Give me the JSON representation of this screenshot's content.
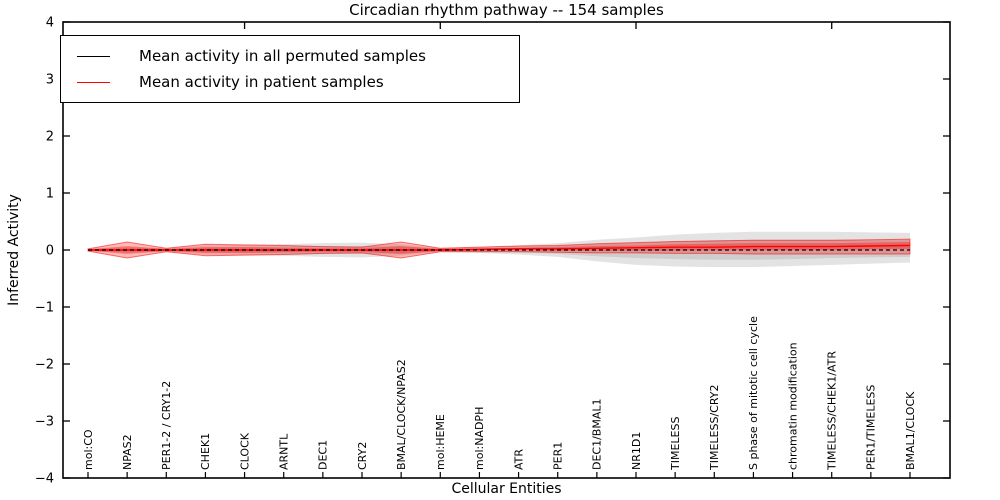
{
  "title": "Circadian rhythm pathway -- 154 samples",
  "axes": {
    "xlabel": "Cellular Entities",
    "ylabel": "Inferred Activity",
    "ytick_labels": [
      "4",
      "3",
      "2",
      "1",
      "0",
      "−1",
      "−2",
      "−3",
      "−4"
    ],
    "ytick_values": [
      4,
      3,
      2,
      1,
      0,
      -1,
      -2,
      -3,
      -4
    ]
  },
  "legend": {
    "items": [
      {
        "label": "Mean activity in all permuted samples",
        "color": "#000000"
      },
      {
        "label": "Mean activity in patient samples",
        "color": "#ff0000"
      }
    ],
    "position": "upper left"
  },
  "colors": {
    "permuted_mean_line": "#000000",
    "patient_mean_line": "#ff0000",
    "permuted_band": "#909090",
    "patient_band": "#ff0000",
    "background": "#ffffff",
    "frame": "#000000"
  },
  "chart_data": {
    "type": "line",
    "title": "Circadian rhythm pathway -- 154 samples",
    "xlabel": "Cellular Entities",
    "ylabel": "Inferred Activity",
    "ylim": [
      -4,
      4
    ],
    "yticks": [
      -4,
      -3,
      -2,
      -1,
      0,
      1,
      2,
      3,
      4
    ],
    "grid": false,
    "legend_position": "upper left",
    "top_major_tick_indices": [
      4,
      9,
      14,
      19
    ],
    "categories": [
      "mol:CO",
      "NPAS2",
      "PER1-2 / CRY1-2",
      "CHEK1",
      "CLOCK",
      "ARNTL",
      "DEC1",
      "CRY2",
      "BMAL/CLOCK/NPAS2",
      "mol:HEME",
      "mol:NADPH",
      "ATR",
      "PER1",
      "DEC1/BMAL1",
      "NR1D1",
      "TIMELESS",
      "TIMELESS/CRY2",
      "S phase of mitotic cell cycle",
      "chromatin modification",
      "TIMELESS/CHEK1/ATR",
      "PER1/TIMELESS",
      "BMAL1/CLOCK"
    ],
    "series": [
      {
        "name": "permuted_band_outer",
        "kind": "band",
        "color": "#909090",
        "opacity": 0.25,
        "upper": [
          0.02,
          0.05,
          0.03,
          0.08,
          0.09,
          0.1,
          0.12,
          0.13,
          0.1,
          0.03,
          0.05,
          0.08,
          0.12,
          0.18,
          0.22,
          0.27,
          0.3,
          0.32,
          0.32,
          0.32,
          0.31,
          0.3
        ],
        "lower": [
          -0.02,
          -0.05,
          -0.03,
          -0.08,
          -0.09,
          -0.1,
          -0.12,
          -0.13,
          -0.1,
          -0.03,
          -0.05,
          -0.08,
          -0.12,
          -0.2,
          -0.26,
          -0.29,
          -0.3,
          -0.3,
          -0.28,
          -0.26,
          -0.24,
          -0.22
        ]
      },
      {
        "name": "permuted_band_inner",
        "kind": "band",
        "color": "#909090",
        "opacity": 0.25,
        "upper": [
          0.01,
          0.03,
          0.02,
          0.04,
          0.05,
          0.06,
          0.07,
          0.07,
          0.06,
          0.02,
          0.03,
          0.04,
          0.07,
          0.1,
          0.12,
          0.15,
          0.17,
          0.18,
          0.18,
          0.18,
          0.17,
          0.17
        ],
        "lower": [
          -0.01,
          -0.03,
          -0.02,
          -0.04,
          -0.05,
          -0.06,
          -0.07,
          -0.07,
          -0.06,
          -0.02,
          -0.03,
          -0.04,
          -0.07,
          -0.11,
          -0.14,
          -0.16,
          -0.17,
          -0.17,
          -0.16,
          -0.14,
          -0.13,
          -0.12
        ]
      },
      {
        "name": "patient_band_outer",
        "kind": "band",
        "color": "#ff0000",
        "opacity": 0.27,
        "edge": "rgba(255,0,0,0.55)",
        "upper": [
          0.02,
          0.14,
          0.03,
          0.1,
          0.09,
          0.08,
          0.06,
          0.05,
          0.14,
          0.03,
          0.05,
          0.07,
          0.08,
          0.11,
          0.13,
          0.15,
          0.16,
          0.17,
          0.17,
          0.17,
          0.18,
          0.19
        ],
        "lower": [
          -0.02,
          -0.14,
          -0.03,
          -0.1,
          -0.09,
          -0.08,
          -0.06,
          -0.05,
          -0.14,
          -0.03,
          -0.03,
          -0.03,
          -0.04,
          -0.05,
          -0.05,
          -0.06,
          -0.06,
          -0.07,
          -0.07,
          -0.07,
          -0.07,
          -0.07
        ]
      },
      {
        "name": "patient_band_inner",
        "kind": "band",
        "color": "#ff0000",
        "opacity": 0.33,
        "upper": [
          0.01,
          0.07,
          0.02,
          0.05,
          0.05,
          0.04,
          0.03,
          0.03,
          0.07,
          0.02,
          0.03,
          0.04,
          0.05,
          0.07,
          0.08,
          0.1,
          0.11,
          0.12,
          0.12,
          0.12,
          0.13,
          0.14
        ],
        "lower": [
          -0.01,
          -0.07,
          -0.02,
          -0.05,
          -0.05,
          -0.04,
          -0.03,
          -0.03,
          -0.07,
          -0.02,
          -0.01,
          0.0,
          -0.01,
          -0.01,
          -0.01,
          -0.01,
          0.0,
          0.0,
          0.0,
          0.0,
          0.01,
          0.02
        ]
      },
      {
        "name": "patient_mean",
        "kind": "line",
        "color": "#ff0000",
        "width": 1.4,
        "dash": "",
        "values": [
          0,
          0,
          0,
          0,
          0,
          0,
          0,
          0,
          0,
          0,
          0.01,
          0.02,
          0.02,
          0.03,
          0.04,
          0.05,
          0.05,
          0.06,
          0.06,
          0.06,
          0.07,
          0.08
        ]
      },
      {
        "name": "permuted_mean",
        "kind": "line",
        "color": "#000000",
        "width": 1.2,
        "dash": "4 3",
        "values": [
          0,
          0,
          0,
          0,
          0,
          0,
          0,
          0,
          0,
          0,
          0,
          0,
          0,
          0,
          0,
          0,
          0,
          0,
          0,
          0,
          0,
          0
        ]
      }
    ]
  }
}
